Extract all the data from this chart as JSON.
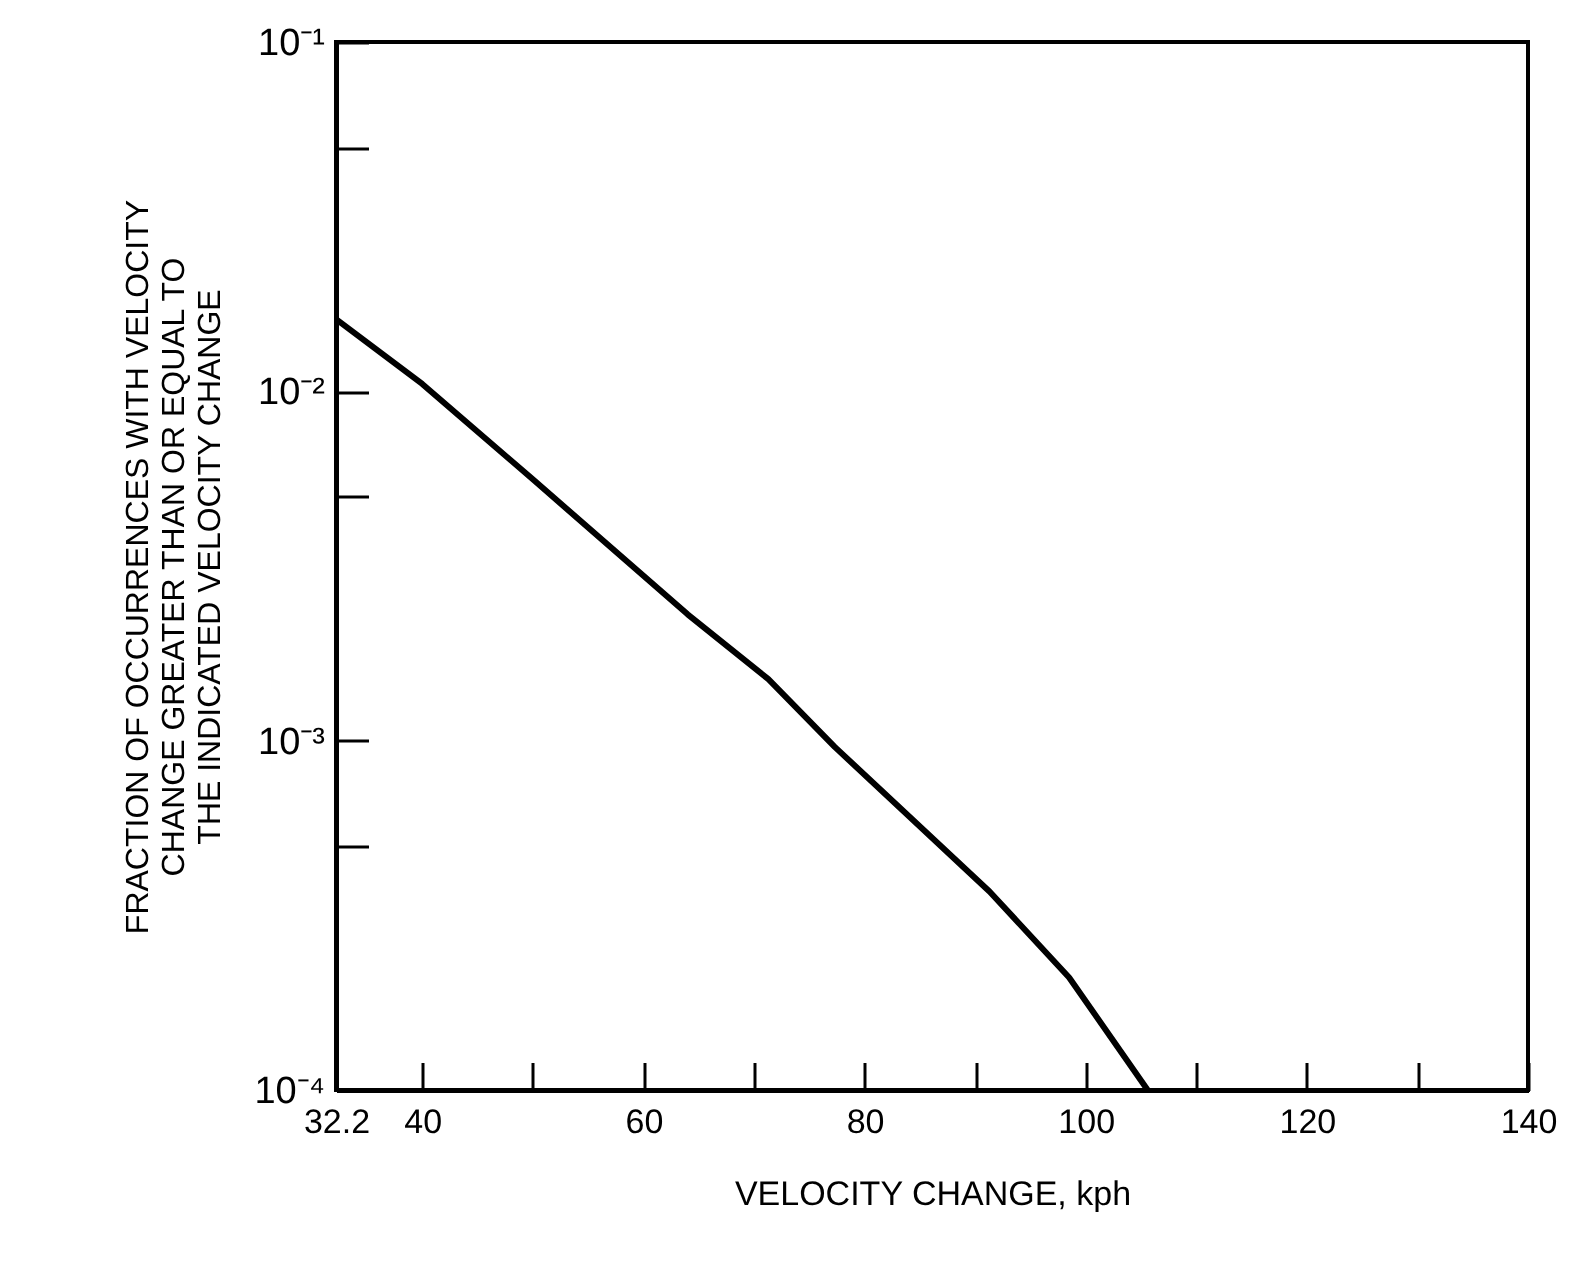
{
  "chart_data": {
    "type": "line",
    "xlabel": "VELOCITY CHANGE, kph",
    "ylabel": "FRACTION OF OCCURRENCES WITH VELOCITY\nCHANGE GREATER THAN OR EQUAL TO\nTHE INDICATED VELOCITY CHANGE",
    "x": [
      32.2,
      40,
      50,
      64,
      71.3,
      77.3,
      91.3,
      98.5,
      105.6
    ],
    "series": [
      {
        "color": "#000000",
        "values": [
          0.0161,
          0.0105,
          0.0056,
          0.0023,
          0.0015,
          0.00096,
          0.00037,
          0.00021,
          0.0001
        ]
      }
    ],
    "xlim": [
      32.2,
      140
    ],
    "xticks": [
      32.2,
      40,
      {
        "value": 50,
        "label": null
      },
      60,
      {
        "value": 70,
        "label": null
      },
      80,
      {
        "value": 90,
        "label": null
      },
      100,
      {
        "value": 110,
        "label": null
      },
      120,
      {
        "value": 130,
        "label": null
      },
      140
    ],
    "ylim": [
      0.0001,
      0.1
    ],
    "log": "y",
    "yticks": [
      {
        "value": 0.0001,
        "label": "10⁻⁴"
      },
      {
        "value": 0.0005,
        "label": null
      },
      {
        "value": 0.001,
        "label": "10⁻³"
      },
      {
        "value": 0.005,
        "label": null
      },
      {
        "value": 0.01,
        "label": "10⁻²"
      },
      {
        "value": 0.05,
        "label": null
      },
      {
        "value": 0.1,
        "label": "10⁻¹"
      }
    ],
    "grid": false,
    "marker": "none",
    "line_style": "solid"
  }
}
